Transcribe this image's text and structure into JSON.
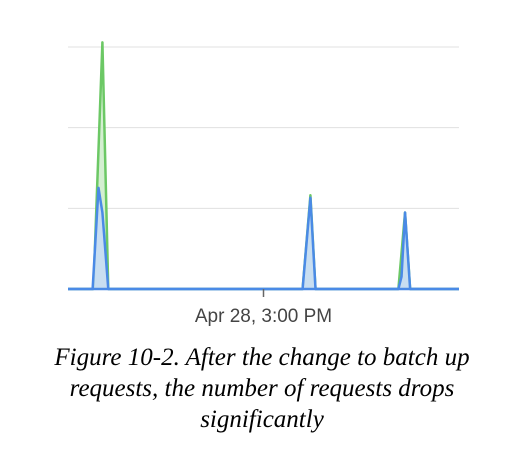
{
  "chart_data": {
    "type": "area",
    "title": "",
    "xlabel": "",
    "ylabel": "",
    "grid": true,
    "legend": "none",
    "gridline_count": 3,
    "x_ticks": [
      {
        "x": 0.5,
        "label": "Apr 28, 3:00 PM"
      }
    ],
    "xlim": [
      0,
      1
    ],
    "ylim": [
      0,
      1.05
    ],
    "series": [
      {
        "color": "#6cc865",
        "fill": "#cdecc9",
        "points": [
          [
            0.0,
            0.0
          ],
          [
            0.065,
            0.0
          ],
          [
            0.088,
            1.0
          ],
          [
            0.103,
            0.0
          ],
          [
            0.6,
            0.0
          ],
          [
            0.62,
            0.38
          ],
          [
            0.633,
            0.0
          ],
          [
            0.845,
            0.0
          ],
          [
            0.862,
            0.31
          ],
          [
            0.875,
            0.0
          ],
          [
            1.0,
            0.0
          ]
        ]
      },
      {
        "color": "#4a8ae6",
        "fill": "#c6dbf7",
        "points": [
          [
            0.0,
            0.0
          ],
          [
            0.063,
            0.0
          ],
          [
            0.078,
            0.41
          ],
          [
            0.088,
            0.31
          ],
          [
            0.103,
            0.0
          ],
          [
            0.6,
            0.0
          ],
          [
            0.62,
            0.37
          ],
          [
            0.633,
            0.0
          ],
          [
            0.845,
            0.0
          ],
          [
            0.853,
            0.05
          ],
          [
            0.862,
            0.31
          ],
          [
            0.875,
            0.0
          ],
          [
            1.0,
            0.0
          ]
        ]
      }
    ]
  },
  "caption": {
    "text": "Figure 10-2. After the change to batch up requests, the number of requests drops significantly"
  }
}
